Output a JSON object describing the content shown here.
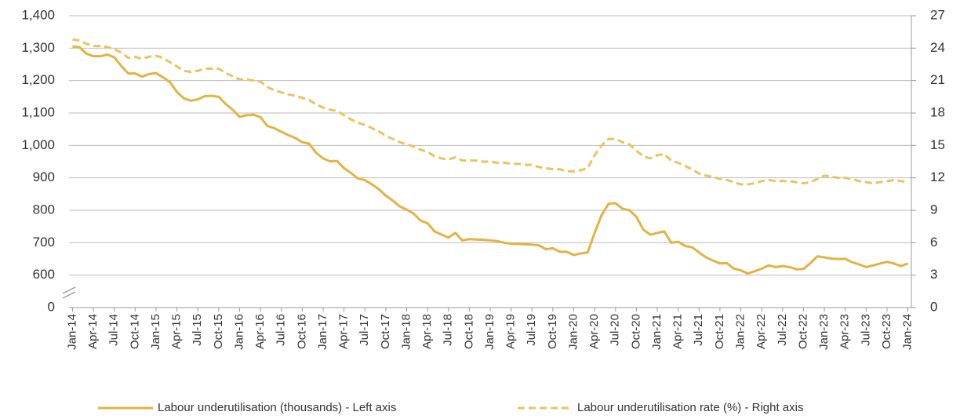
{
  "chart_data": {
    "type": "line",
    "categories": [
      "Jan-14",
      null,
      null,
      "Apr-14",
      null,
      null,
      "Jul-14",
      null,
      null,
      "Oct-14",
      null,
      null,
      "Jan-15",
      null,
      null,
      "Apr-15",
      null,
      null,
      "Jul-15",
      null,
      null,
      "Oct-15",
      null,
      null,
      "Jan-16",
      null,
      null,
      "Apr-16",
      null,
      null,
      "Jul-16",
      null,
      null,
      "Oct-16",
      null,
      null,
      "Jan-17",
      null,
      null,
      "Apr-17",
      null,
      null,
      "Jul-17",
      null,
      null,
      "Oct-17",
      null,
      null,
      "Jan-18",
      null,
      null,
      "Apr-18",
      null,
      null,
      "Jul-18",
      null,
      null,
      "Oct-18",
      null,
      null,
      "Jan-19",
      null,
      null,
      "Apr-19",
      null,
      null,
      "Jul-19",
      null,
      null,
      "Oct-19",
      null,
      null,
      "Jan-20",
      null,
      null,
      "Apr-20",
      null,
      null,
      "Jul-20",
      null,
      null,
      "Oct-20",
      null,
      null,
      "Jan-21",
      null,
      null,
      "Apr-21",
      null,
      null,
      "Jul-21",
      null,
      null,
      "Oct-21",
      null,
      null,
      "Jan-22",
      null,
      null,
      "Apr-22",
      null,
      null,
      "Jul-22",
      null,
      null,
      "Oct-22",
      null,
      null,
      "Jan-23",
      null,
      null,
      "Apr-23",
      null,
      null,
      "Jul-23",
      null,
      null,
      "Oct-23",
      null,
      null,
      "Jan-24"
    ],
    "series": [
      {
        "name": "Labour underutilisation (thousands) - Left axis",
        "color": "#E3B341",
        "dash": false,
        "values": [
          1305,
          1303,
          1283,
          1275,
          1275,
          1280,
          1272,
          1245,
          1222,
          1222,
          1212,
          1220,
          1223,
          1210,
          1195,
          1165,
          1145,
          1138,
          1142,
          1152,
          1153,
          1150,
          1128,
          1110,
          1088,
          1093,
          1095,
          1087,
          1060,
          1053,
          1042,
          1032,
          1023,
          1010,
          1005,
          977,
          960,
          951,
          952,
          930,
          915,
          898,
          893,
          880,
          865,
          845,
          830,
          812,
          802,
          790,
          768,
          760,
          735,
          725,
          716,
          730,
          707,
          711,
          710,
          709,
          707,
          705,
          700,
          697,
          696,
          695,
          694,
          692,
          680,
          683,
          672,
          672,
          662,
          667,
          670,
          730,
          785,
          820,
          822,
          805,
          800,
          780,
          740,
          725,
          730,
          735,
          700,
          703,
          690,
          686,
          670,
          655,
          645,
          636,
          637,
          620,
          615,
          605,
          612,
          620,
          630,
          625,
          628,
          625,
          618,
          619,
          637,
          658,
          655,
          651,
          650,
          650,
          640,
          633,
          625,
          630,
          636,
          641,
          636,
          628,
          636
        ]
      },
      {
        "name": "Labour underutilisation rate (%) - Right axis",
        "color": "#EBC35E",
        "dash": true,
        "axis": "y2",
        "values": [
          24.8,
          24.7,
          24.4,
          24.2,
          24.2,
          24.1,
          23.9,
          23.6,
          23.1,
          23.2,
          23.0,
          23.2,
          23.3,
          23.1,
          22.7,
          22.3,
          21.9,
          21.8,
          21.9,
          22.1,
          22.1,
          22.1,
          21.7,
          21.4,
          21.1,
          21.1,
          21.0,
          20.9,
          20.4,
          20.1,
          19.9,
          19.7,
          19.6,
          19.4,
          19.2,
          18.8,
          18.5,
          18.3,
          18.2,
          17.8,
          17.4,
          17.1,
          16.9,
          16.6,
          16.3,
          15.9,
          15.6,
          15.3,
          15.1,
          14.9,
          14.6,
          14.4,
          14.0,
          13.8,
          13.7,
          13.9,
          13.6,
          13.6,
          13.6,
          13.5,
          13.5,
          13.4,
          13.4,
          13.3,
          13.3,
          13.2,
          13.2,
          13.0,
          12.9,
          12.8,
          12.8,
          12.6,
          12.6,
          12.7,
          12.9,
          14.1,
          15.0,
          15.6,
          15.6,
          15.3,
          15.1,
          14.5,
          14.0,
          13.8,
          14.1,
          14.2,
          13.6,
          13.4,
          13.1,
          12.8,
          12.4,
          12.2,
          12.1,
          11.9,
          11.8,
          11.6,
          11.4,
          11.4,
          11.5,
          11.7,
          11.8,
          11.7,
          11.7,
          11.7,
          11.6,
          11.5,
          11.6,
          11.9,
          12.2,
          12.1,
          12.0,
          12.0,
          11.9,
          11.7,
          11.6,
          11.5,
          11.6,
          11.7,
          11.8,
          11.7,
          11.6
        ]
      }
    ],
    "ylim": [
      0,
      1400
    ],
    "y_break": [
      0,
      600
    ],
    "yticks": [
      0,
      600,
      700,
      800,
      900,
      {
        "value": 1000,
        "label": "1,000"
      },
      {
        "value": 1100,
        "label": "1,100"
      },
      {
        "value": 1200,
        "label": "1,200"
      },
      {
        "value": 1300,
        "label": "1,300"
      },
      {
        "value": 1400,
        "label": "1,400"
      }
    ],
    "y2lim": [
      0,
      27
    ],
    "y2ticks": [
      0,
      3,
      6,
      9,
      12,
      15,
      18,
      21,
      24,
      27
    ],
    "grid": true,
    "legend": "bottom"
  }
}
